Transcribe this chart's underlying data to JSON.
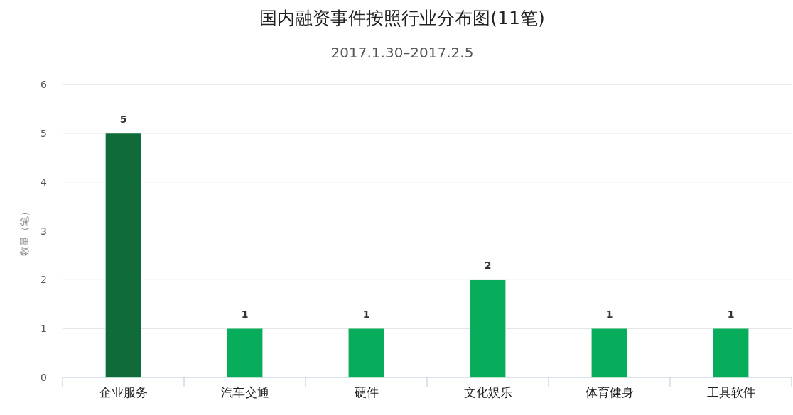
{
  "chart_data": {
    "type": "bar",
    "title": "国内融资事件按照行业分布图(11笔)",
    "subtitle": "2017.1.30–2017.2.5",
    "ylabel": "数量（笔）",
    "categories": [
      "企业服务",
      "汽车交通",
      "硬件",
      "文化娱乐",
      "体育健身",
      "工具软件"
    ],
    "values": [
      5,
      1,
      1,
      2,
      1,
      1
    ],
    "colors": [
      "#0f6b3a",
      "#08ad5c",
      "#08ad5c",
      "#08ad5c",
      "#08ad5c",
      "#08ad5c"
    ],
    "ylim": [
      0,
      6
    ],
    "yticks": [
      0,
      1,
      2,
      3,
      4,
      5,
      6
    ],
    "grid": "y",
    "data_labels": true
  }
}
